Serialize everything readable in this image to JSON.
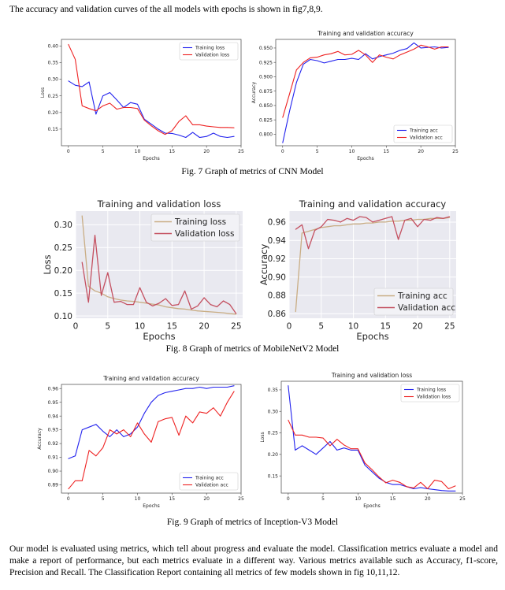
{
  "intro": "The accuracy and validation curves of the all models with epochs is shown in fig7,8,9.",
  "captions": [
    "Fig. 7 Graph of metrics of CNN Model",
    "Fig. 8 Graph of metrics of MobileNetV2 Model",
    "Fig. 9 Graph of metrics of Inception-V3 Model"
  ],
  "paragraph": "Our model is evaluated using metrics, which tell about progress and evaluate the model. Classification metrics evaluate a model and make a report of performance, but each metrics evaluate in a different way. Various metrics available such as Accuracy, f1-score, Precision and Recall. The Classification Report containing all metrics of few models shown in fig 10,11,12.",
  "chart_data": [
    {
      "id": "cnn-loss",
      "type": "line",
      "style": "white",
      "title": "",
      "xlabel": "Epochs",
      "ylabel": "Loss",
      "xlim": [
        -1,
        25
      ],
      "ylim": [
        0.1,
        0.42
      ],
      "xticks": [
        0,
        5,
        10,
        15,
        20,
        25
      ],
      "yticks": [
        0.15,
        0.2,
        0.25,
        0.3,
        0.35,
        0.4
      ],
      "ytick_labels": [
        "0.15",
        "0.20",
        "0.25",
        "0.30",
        "0.35",
        "0.40"
      ],
      "legend": "top-right",
      "grid": false,
      "x": [
        0,
        1,
        2,
        3,
        4,
        5,
        6,
        7,
        8,
        9,
        10,
        11,
        12,
        13,
        14,
        15,
        16,
        17,
        18,
        19,
        20,
        21,
        22,
        23,
        24
      ],
      "series": [
        {
          "name": "Training loss",
          "color": "#2222ee",
          "values": [
            0.295,
            0.282,
            0.278,
            0.292,
            0.195,
            0.25,
            0.26,
            0.238,
            0.215,
            0.23,
            0.225,
            0.18,
            0.165,
            0.15,
            0.138,
            0.137,
            0.132,
            0.125,
            0.14,
            0.125,
            0.128,
            0.138,
            0.128,
            0.125,
            0.128
          ]
        },
        {
          "name": "Validation loss",
          "color": "#ee2222",
          "values": [
            0.405,
            0.36,
            0.22,
            0.212,
            0.205,
            0.22,
            0.228,
            0.21,
            0.215,
            0.215,
            0.212,
            0.177,
            0.16,
            0.145,
            0.134,
            0.145,
            0.173,
            0.19,
            0.163,
            0.163,
            0.159,
            0.157,
            0.155,
            0.155,
            0.154
          ]
        }
      ]
    },
    {
      "id": "cnn-acc",
      "type": "line",
      "style": "white",
      "title": "Training and validation accuracy",
      "xlabel": "Epochs",
      "ylabel": "Accuracy",
      "xlim": [
        -1,
        25
      ],
      "ylim": [
        0.78,
        0.965
      ],
      "xticks": [
        0,
        5,
        10,
        15,
        20,
        25
      ],
      "yticks": [
        0.8,
        0.825,
        0.85,
        0.875,
        0.9,
        0.925,
        0.95
      ],
      "ytick_labels": [
        "0.800",
        "0.825",
        "0.850",
        "0.875",
        "0.900",
        "0.925",
        "0.950"
      ],
      "legend": "bottom-right",
      "grid": false,
      "x": [
        0,
        1,
        2,
        3,
        4,
        5,
        6,
        7,
        8,
        9,
        10,
        11,
        12,
        13,
        14,
        15,
        16,
        17,
        18,
        19,
        20,
        21,
        22,
        23,
        24
      ],
      "series": [
        {
          "name": "Training acc",
          "color": "#2222ee",
          "values": [
            0.785,
            0.84,
            0.89,
            0.922,
            0.93,
            0.928,
            0.924,
            0.927,
            0.93,
            0.93,
            0.932,
            0.93,
            0.94,
            0.931,
            0.935,
            0.938,
            0.941,
            0.946,
            0.949,
            0.959,
            0.95,
            0.951,
            0.952,
            0.95,
            0.951
          ]
        },
        {
          "name": "Validation acc",
          "color": "#ee2222",
          "values": [
            0.829,
            0.87,
            0.912,
            0.925,
            0.933,
            0.934,
            0.938,
            0.94,
            0.944,
            0.938,
            0.939,
            0.946,
            0.938,
            0.925,
            0.938,
            0.934,
            0.931,
            0.938,
            0.943,
            0.948,
            0.955,
            0.952,
            0.948,
            0.952,
            0.952
          ]
        }
      ]
    },
    {
      "id": "mobile-loss",
      "type": "line",
      "style": "gray",
      "title": "Training and validation loss",
      "xlabel": "Epochs",
      "ylabel": "Loss",
      "xlim": [
        0,
        26
      ],
      "ylim": [
        0.095,
        0.33
      ],
      "xticks": [
        0,
        5,
        10,
        15,
        20,
        25
      ],
      "yticks": [
        0.1,
        0.15,
        0.2,
        0.25,
        0.3
      ],
      "ytick_labels": [
        "0.10",
        "0.15",
        "0.20",
        "0.25",
        "0.30"
      ],
      "legend": "top-right",
      "grid": true,
      "x": [
        1,
        2,
        3,
        4,
        5,
        6,
        7,
        8,
        9,
        10,
        11,
        12,
        13,
        14,
        15,
        16,
        17,
        18,
        19,
        20,
        21,
        22,
        23,
        24,
        25
      ],
      "series": [
        {
          "name": "Training loss",
          "color": "#c9ad84",
          "values": [
            0.32,
            0.165,
            0.155,
            0.15,
            0.142,
            0.138,
            0.135,
            0.133,
            0.132,
            0.13,
            0.128,
            0.126,
            0.124,
            0.12,
            0.118,
            0.116,
            0.115,
            0.113,
            0.111,
            0.11,
            0.109,
            0.108,
            0.107,
            0.105,
            0.104
          ]
        },
        {
          "name": "Validation loss",
          "color": "#c45060",
          "values": [
            0.218,
            0.13,
            0.277,
            0.145,
            0.195,
            0.13,
            0.132,
            0.125,
            0.125,
            0.162,
            0.13,
            0.122,
            0.128,
            0.138,
            0.123,
            0.125,
            0.155,
            0.115,
            0.122,
            0.14,
            0.125,
            0.12,
            0.133,
            0.125,
            0.105
          ]
        }
      ]
    },
    {
      "id": "mobile-acc",
      "type": "line",
      "style": "gray",
      "title": "Training and validation accuracy",
      "xlabel": "Epochs",
      "ylabel": "Accuracy",
      "xlim": [
        0,
        26
      ],
      "ylim": [
        0.855,
        0.972
      ],
      "xticks": [
        0,
        5,
        10,
        15,
        20,
        25
      ],
      "yticks": [
        0.86,
        0.88,
        0.9,
        0.92,
        0.94,
        0.96
      ],
      "ytick_labels": [
        "0.86",
        "0.88",
        "0.90",
        "0.92",
        "0.94",
        "0.96"
      ],
      "legend": "bottom-right",
      "grid": true,
      "x": [
        1,
        2,
        3,
        4,
        5,
        6,
        7,
        8,
        9,
        10,
        11,
        12,
        13,
        14,
        15,
        16,
        17,
        18,
        19,
        20,
        21,
        22,
        23,
        24,
        25
      ],
      "series": [
        {
          "name": "Training acc",
          "color": "#c9ad84",
          "values": [
            0.862,
            0.948,
            0.95,
            0.952,
            0.954,
            0.955,
            0.956,
            0.956,
            0.957,
            0.958,
            0.958,
            0.959,
            0.959,
            0.96,
            0.96,
            0.961,
            0.961,
            0.962,
            0.962,
            0.963,
            0.963,
            0.964,
            0.964,
            0.964,
            0.965
          ]
        },
        {
          "name": "Validation acc",
          "color": "#c45060",
          "values": [
            0.952,
            0.957,
            0.931,
            0.951,
            0.955,
            0.963,
            0.962,
            0.96,
            0.964,
            0.962,
            0.966,
            0.965,
            0.96,
            0.962,
            0.964,
            0.966,
            0.941,
            0.962,
            0.964,
            0.955,
            0.963,
            0.962,
            0.965,
            0.964,
            0.966
          ]
        }
      ]
    },
    {
      "id": "incep-acc",
      "type": "line",
      "style": "white",
      "title": "Training and validation accuracy",
      "xlabel": "Epochs",
      "ylabel": "Accuracy",
      "xlim": [
        -1,
        25
      ],
      "ylim": [
        0.884,
        0.963
      ],
      "xticks": [
        0,
        5,
        10,
        15,
        20,
        25
      ],
      "yticks": [
        0.89,
        0.9,
        0.91,
        0.92,
        0.93,
        0.94,
        0.95,
        0.96
      ],
      "ytick_labels": [
        "0.89",
        "0.90",
        "0.91",
        "0.92",
        "0.93",
        "0.94",
        "0.95",
        "0.96"
      ],
      "legend": "bottom-right",
      "grid": false,
      "x": [
        0,
        1,
        2,
        3,
        4,
        5,
        6,
        7,
        8,
        9,
        10,
        11,
        12,
        13,
        14,
        15,
        16,
        17,
        18,
        19,
        20,
        21,
        22,
        23,
        24
      ],
      "series": [
        {
          "name": "Training acc",
          "color": "#2222ee",
          "values": [
            0.909,
            0.911,
            0.93,
            0.932,
            0.934,
            0.929,
            0.925,
            0.93,
            0.925,
            0.927,
            0.932,
            0.942,
            0.95,
            0.955,
            0.957,
            0.958,
            0.959,
            0.96,
            0.96,
            0.961,
            0.96,
            0.961,
            0.961,
            0.961,
            0.962
          ]
        },
        {
          "name": "Validation acc",
          "color": "#ee2222",
          "values": [
            0.887,
            0.893,
            0.893,
            0.915,
            0.911,
            0.917,
            0.93,
            0.927,
            0.93,
            0.925,
            0.935,
            0.927,
            0.921,
            0.936,
            0.938,
            0.939,
            0.926,
            0.94,
            0.935,
            0.943,
            0.942,
            0.946,
            0.94,
            0.95,
            0.958
          ]
        }
      ]
    },
    {
      "id": "incep-loss",
      "type": "line",
      "style": "white",
      "title": "Training and validation loss",
      "xlabel": "Epochs",
      "ylabel": "Loss",
      "xlim": [
        -1,
        25
      ],
      "ylim": [
        0.11,
        0.37
      ],
      "xticks": [
        0,
        5,
        10,
        15,
        20,
        25
      ],
      "yticks": [
        0.15,
        0.2,
        0.25,
        0.3,
        0.35
      ],
      "ytick_labels": [
        "0.15",
        "0.20",
        "0.25",
        "0.30",
        "0.35"
      ],
      "legend": "top-right",
      "grid": false,
      "x": [
        0,
        1,
        2,
        3,
        4,
        5,
        6,
        7,
        8,
        9,
        10,
        11,
        12,
        13,
        14,
        15,
        16,
        17,
        18,
        19,
        20,
        21,
        22,
        23,
        24
      ],
      "series": [
        {
          "name": "Training loss",
          "color": "#2222ee",
          "values": [
            0.36,
            0.21,
            0.22,
            0.21,
            0.2,
            0.215,
            0.23,
            0.21,
            0.215,
            0.21,
            0.21,
            0.175,
            0.16,
            0.145,
            0.135,
            0.13,
            0.13,
            0.125,
            0.12,
            0.123,
            0.12,
            0.118,
            0.116,
            0.115,
            0.115
          ]
        },
        {
          "name": "Validation loss",
          "color": "#ee2222",
          "values": [
            0.28,
            0.245,
            0.245,
            0.24,
            0.24,
            0.238,
            0.22,
            0.235,
            0.222,
            0.213,
            0.213,
            0.18,
            0.165,
            0.148,
            0.134,
            0.14,
            0.135,
            0.125,
            0.122,
            0.135,
            0.12,
            0.14,
            0.137,
            0.12,
            0.127
          ]
        }
      ]
    }
  ]
}
